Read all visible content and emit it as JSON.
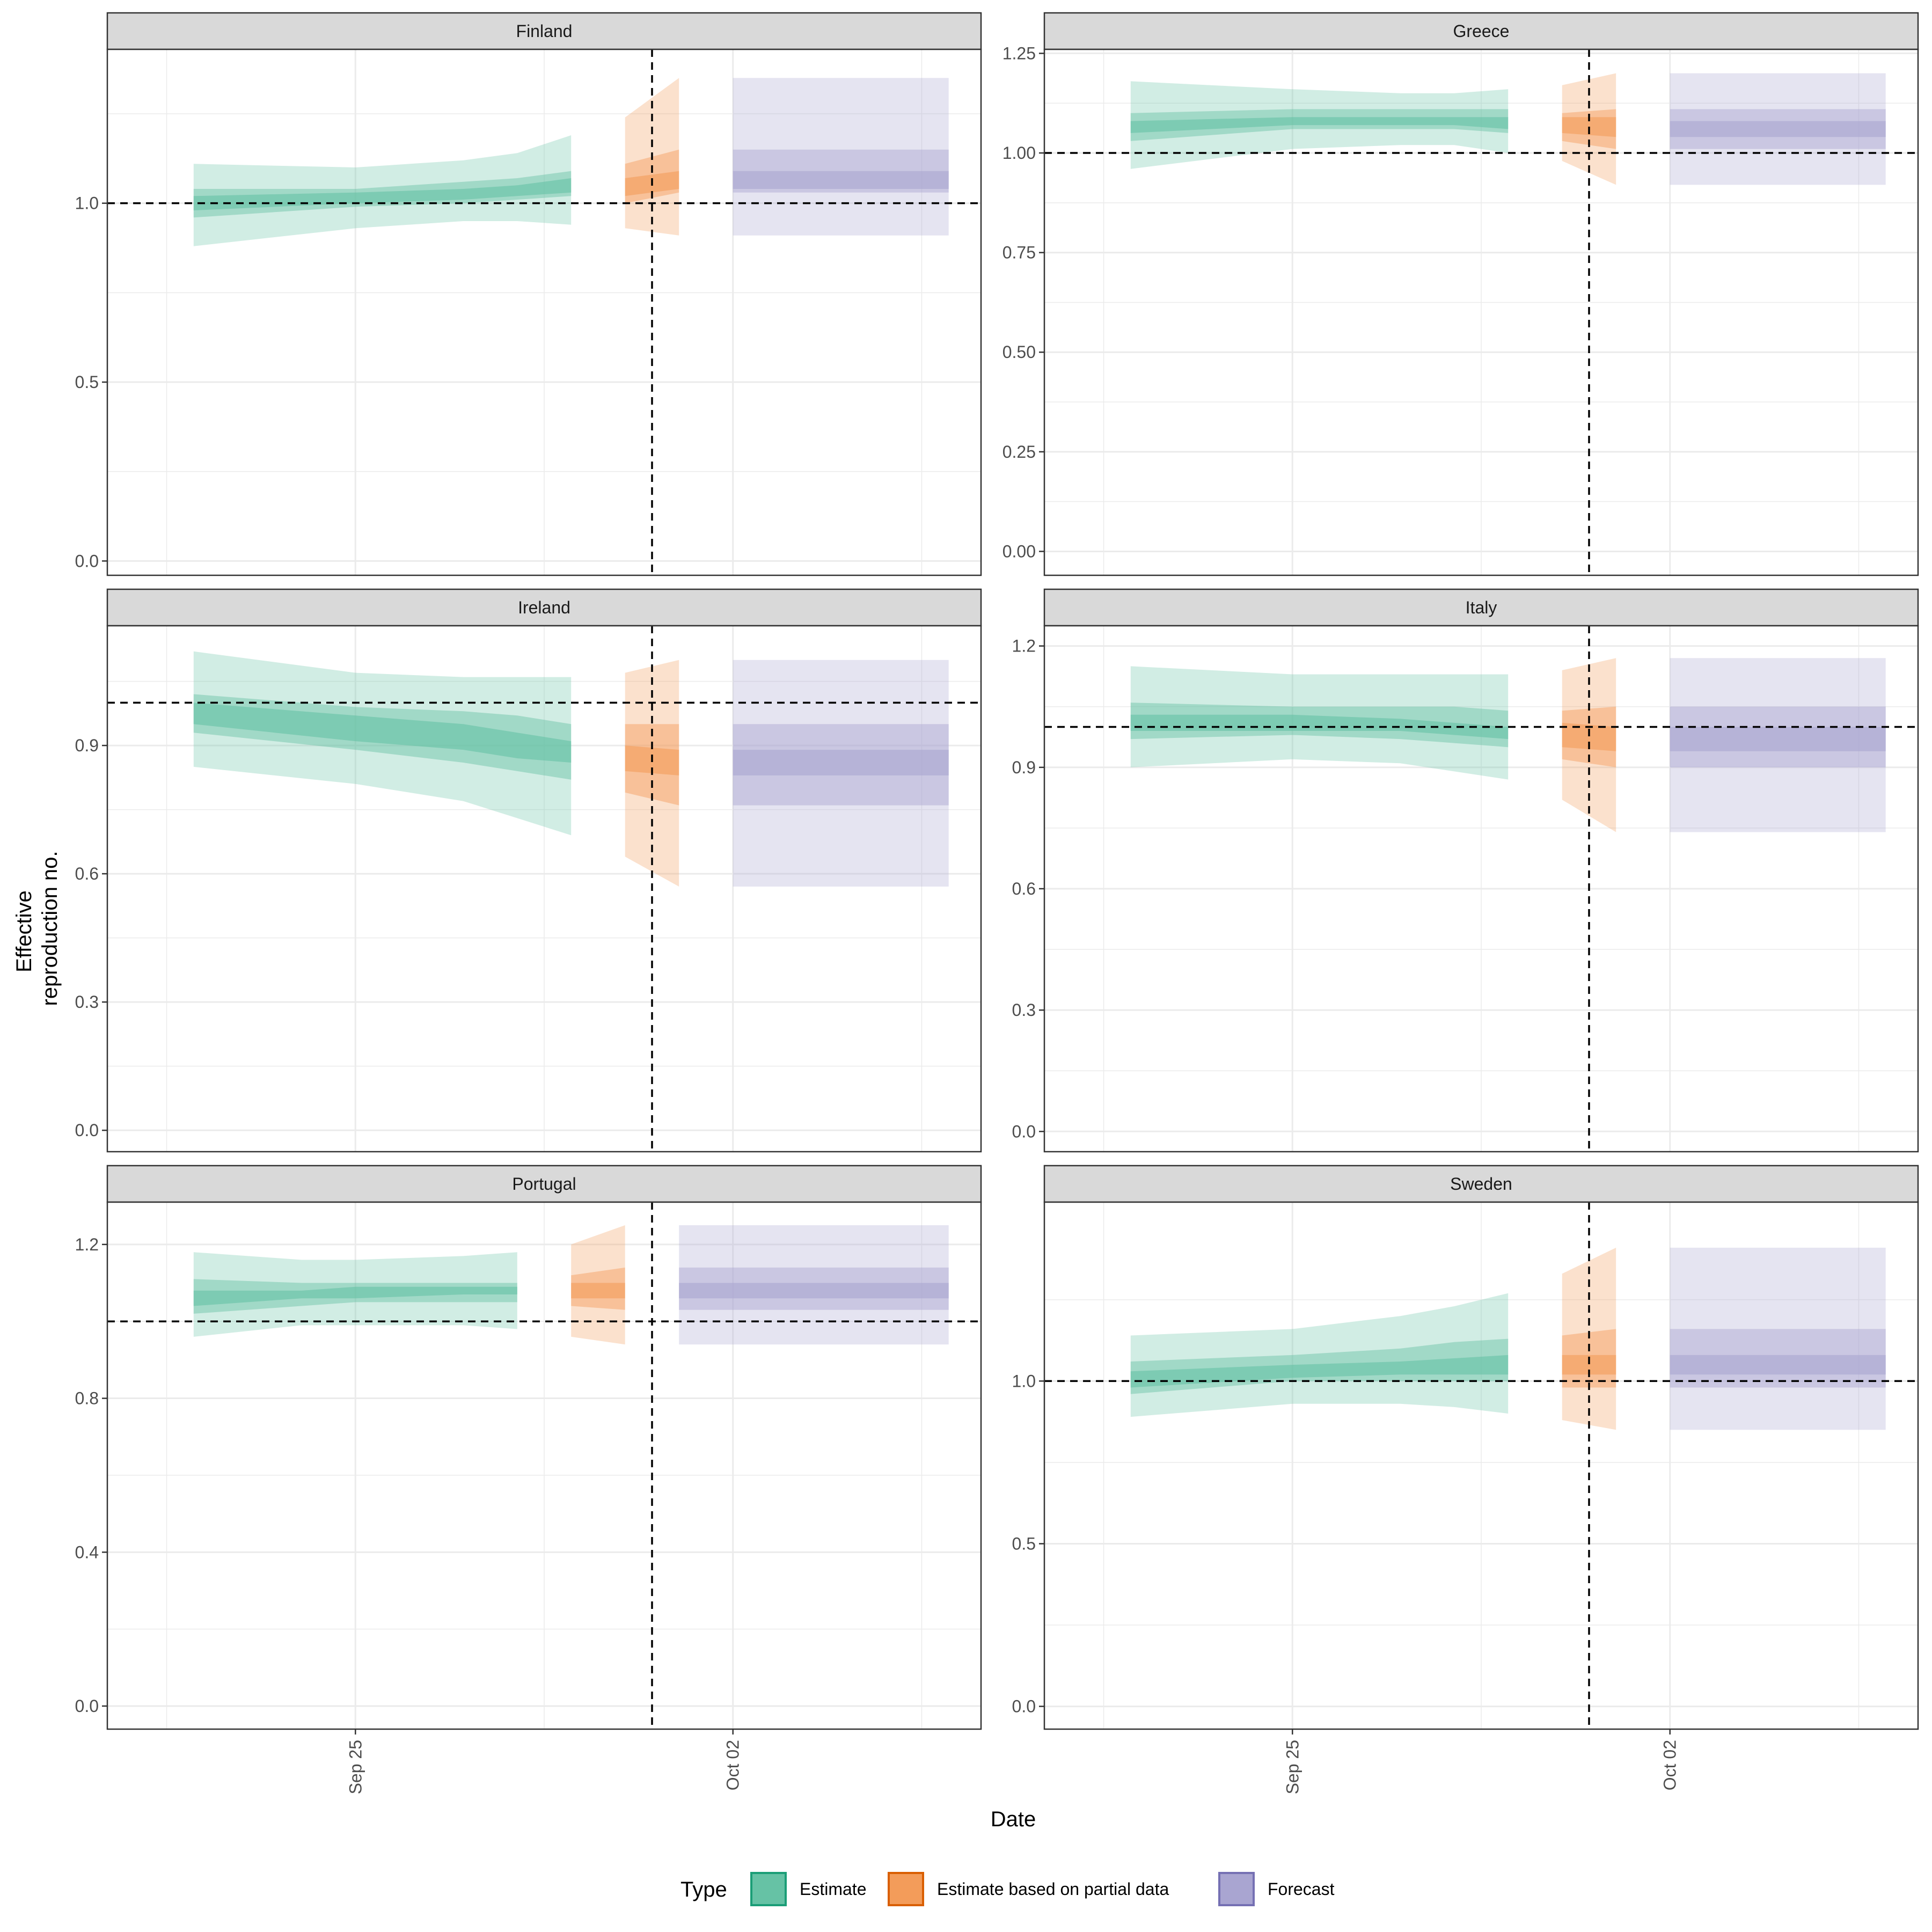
{
  "chart_data": {
    "type": "area",
    "facet_layout": "3 rows x 2 columns",
    "xlabel": "Date",
    "ylabel_lines": [
      "Effective",
      "reproduction no."
    ],
    "x_ticks": [
      {
        "label": "Sep 25",
        "date": "2020-09-25"
      },
      {
        "label": "Oct 02",
        "date": "2020-10-02"
      }
    ],
    "x_range": [
      "2020-09-21",
      "2020-10-06"
    ],
    "forecast_cutoff_date": "2020-10-01",
    "reference_y": 1.0,
    "legend": {
      "position": "bottom",
      "title": "Type",
      "entries": [
        {
          "name": "Estimate",
          "fill": "#66c2a5",
          "stroke": "#1b9e77"
        },
        {
          "name": "Estimate based on partial data",
          "fill": "#f39c5a",
          "stroke": "#d95f02"
        },
        {
          "name": "Forecast",
          "fill": "#a9a5d1",
          "stroke": "#7570b3"
        }
      ]
    },
    "colors": {
      "Estimate": "#66c2a5",
      "Estimate based on partial data": "#f39c5a",
      "Forecast": "#a9a5d1"
    },
    "panels": [
      {
        "name": "Finland",
        "ylim": [
          -0.04,
          1.43
        ],
        "yticks": [
          0.0,
          0.5,
          1.0
        ],
        "tick_labels": [
          "0.0",
          "0.5",
          "1.0"
        ],
        "series": [
          {
            "type": "Estimate",
            "dates": [
              "2020-09-22",
              "2020-09-25",
              "2020-09-27",
              "2020-09-28",
              "2020-09-29"
            ],
            "outer_lo": [
              0.88,
              0.93,
              0.95,
              0.95,
              0.94
            ],
            "outer_hi": [
              1.11,
              1.1,
              1.12,
              1.14,
              1.19
            ],
            "mid_lo": [
              0.96,
              0.99,
              1.0,
              1.01,
              1.02
            ],
            "mid_hi": [
              1.04,
              1.04,
              1.06,
              1.07,
              1.09
            ],
            "inner_lo": [
              0.98,
              1.0,
              1.01,
              1.02,
              1.03
            ],
            "inner_hi": [
              1.02,
              1.03,
              1.04,
              1.05,
              1.07
            ]
          },
          {
            "type": "Estimate based on partial data",
            "dates": [
              "2020-09-30",
              "2020-10-01"
            ],
            "outer_lo": [
              0.93,
              0.91
            ],
            "outer_hi": [
              1.24,
              1.35
            ],
            "mid_lo": [
              1.0,
              1.03
            ],
            "mid_hi": [
              1.11,
              1.15
            ],
            "inner_lo": [
              1.02,
              1.04
            ],
            "inner_hi": [
              1.07,
              1.09
            ]
          },
          {
            "type": "Forecast",
            "dates": [
              "2020-10-02",
              "2020-10-06"
            ],
            "outer_lo": [
              0.91,
              0.91
            ],
            "outer_hi": [
              1.35,
              1.35
            ],
            "mid_lo": [
              1.03,
              1.03
            ],
            "mid_hi": [
              1.15,
              1.15
            ],
            "inner_lo": [
              1.04,
              1.04
            ],
            "inner_hi": [
              1.09,
              1.09
            ]
          }
        ]
      },
      {
        "name": "Greece",
        "ylim": [
          -0.06,
          1.26
        ],
        "yticks": [
          0.0,
          0.25,
          0.5,
          0.75,
          1.0,
          1.25
        ],
        "tick_labels": [
          "0.00",
          "0.25",
          "0.50",
          "0.75",
          "1.00",
          "1.25"
        ],
        "series": [
          {
            "type": "Estimate",
            "dates": [
              "2020-09-22",
              "2020-09-25",
              "2020-09-27",
              "2020-09-28",
              "2020-09-29"
            ],
            "outer_lo": [
              0.96,
              1.01,
              1.02,
              1.02,
              1.0
            ],
            "outer_hi": [
              1.18,
              1.16,
              1.15,
              1.15,
              1.16
            ],
            "mid_lo": [
              1.03,
              1.06,
              1.06,
              1.06,
              1.05
            ],
            "mid_hi": [
              1.1,
              1.11,
              1.11,
              1.11,
              1.11
            ],
            "inner_lo": [
              1.05,
              1.07,
              1.07,
              1.07,
              1.06
            ],
            "inner_hi": [
              1.08,
              1.09,
              1.09,
              1.09,
              1.09
            ]
          },
          {
            "type": "Estimate based on partial data",
            "dates": [
              "2020-09-30",
              "2020-10-01"
            ],
            "outer_lo": [
              0.98,
              0.92
            ],
            "outer_hi": [
              1.17,
              1.2
            ],
            "mid_lo": [
              1.03,
              1.01
            ],
            "mid_hi": [
              1.1,
              1.11
            ],
            "inner_lo": [
              1.05,
              1.04
            ],
            "inner_hi": [
              1.09,
              1.09
            ]
          },
          {
            "type": "Forecast",
            "dates": [
              "2020-10-02",
              "2020-10-06"
            ],
            "outer_lo": [
              0.92,
              0.92
            ],
            "outer_hi": [
              1.2,
              1.2
            ],
            "mid_lo": [
              1.01,
              1.01
            ],
            "mid_hi": [
              1.11,
              1.11
            ],
            "inner_lo": [
              1.04,
              1.04
            ],
            "inner_hi": [
              1.08,
              1.08
            ]
          }
        ]
      },
      {
        "name": "Ireland",
        "ylim": [
          -0.05,
          1.18
        ],
        "yticks": [
          0.0,
          0.3,
          0.6,
          0.9
        ],
        "tick_labels": [
          "0.0",
          "0.3",
          "0.6",
          "0.9"
        ],
        "series": [
          {
            "type": "Estimate",
            "dates": [
              "2020-09-22",
              "2020-09-25",
              "2020-09-27",
              "2020-09-28",
              "2020-09-29"
            ],
            "outer_lo": [
              0.85,
              0.81,
              0.77,
              0.73,
              0.69
            ],
            "outer_hi": [
              1.12,
              1.07,
              1.06,
              1.06,
              1.06
            ],
            "mid_lo": [
              0.93,
              0.89,
              0.86,
              0.84,
              0.82
            ],
            "mid_hi": [
              1.02,
              0.99,
              0.98,
              0.97,
              0.95
            ],
            "inner_lo": [
              0.95,
              0.91,
              0.89,
              0.87,
              0.86
            ],
            "inner_hi": [
              1.0,
              0.97,
              0.95,
              0.93,
              0.91
            ]
          },
          {
            "type": "Estimate based on partial data",
            "dates": [
              "2020-09-30",
              "2020-10-01"
            ],
            "outer_lo": [
              0.64,
              0.57
            ],
            "outer_hi": [
              1.07,
              1.1
            ],
            "mid_lo": [
              0.79,
              0.76
            ],
            "mid_hi": [
              0.95,
              0.95
            ],
            "inner_lo": [
              0.84,
              0.83
            ],
            "inner_hi": [
              0.9,
              0.89
            ]
          },
          {
            "type": "Forecast",
            "dates": [
              "2020-10-02",
              "2020-10-06"
            ],
            "outer_lo": [
              0.57,
              0.57
            ],
            "outer_hi": [
              1.1,
              1.1
            ],
            "mid_lo": [
              0.76,
              0.76
            ],
            "mid_hi": [
              0.95,
              0.95
            ],
            "inner_lo": [
              0.83,
              0.83
            ],
            "inner_hi": [
              0.89,
              0.89
            ]
          }
        ]
      },
      {
        "name": "Italy",
        "ylim": [
          -0.05,
          1.25
        ],
        "yticks": [
          0.0,
          0.3,
          0.6,
          0.9,
          1.2
        ],
        "tick_labels": [
          "0.0",
          "0.3",
          "0.6",
          "0.9",
          "1.2"
        ],
        "series": [
          {
            "type": "Estimate",
            "dates": [
              "2020-09-22",
              "2020-09-25",
              "2020-09-27",
              "2020-09-28",
              "2020-09-29"
            ],
            "outer_lo": [
              0.9,
              0.92,
              0.91,
              0.89,
              0.87
            ],
            "outer_hi": [
              1.15,
              1.13,
              1.13,
              1.13,
              1.13
            ],
            "mid_lo": [
              0.97,
              0.98,
              0.97,
              0.96,
              0.95
            ],
            "mid_hi": [
              1.06,
              1.05,
              1.05,
              1.05,
              1.04
            ],
            "inner_lo": [
              0.99,
              0.99,
              0.99,
              0.98,
              0.97
            ],
            "inner_hi": [
              1.03,
              1.03,
              1.02,
              1.01,
              1.0
            ]
          },
          {
            "type": "Estimate based on partial data",
            "dates": [
              "2020-09-30",
              "2020-10-01"
            ],
            "outer_lo": [
              0.82,
              0.74
            ],
            "outer_hi": [
              1.14,
              1.17
            ],
            "mid_lo": [
              0.92,
              0.9
            ],
            "mid_hi": [
              1.04,
              1.05
            ],
            "inner_lo": [
              0.95,
              0.94
            ],
            "inner_hi": [
              1.01,
              1.0
            ]
          },
          {
            "type": "Forecast",
            "dates": [
              "2020-10-02",
              "2020-10-06"
            ],
            "outer_lo": [
              0.74,
              0.74
            ],
            "outer_hi": [
              1.17,
              1.17
            ],
            "mid_lo": [
              0.9,
              0.9
            ],
            "mid_hi": [
              1.05,
              1.05
            ],
            "inner_lo": [
              0.94,
              0.94
            ],
            "inner_hi": [
              1.0,
              1.0
            ]
          }
        ]
      },
      {
        "name": "Portugal",
        "ylim": [
          -0.06,
          1.31
        ],
        "yticks": [
          0.0,
          0.4,
          0.8,
          1.2
        ],
        "tick_labels": [
          "0.0",
          "0.4",
          "0.8",
          "1.2"
        ],
        "series": [
          {
            "type": "Estimate",
            "dates": [
              "2020-09-22",
              "2020-09-24",
              "2020-09-25",
              "2020-09-27",
              "2020-09-28"
            ],
            "outer_lo": [
              0.96,
              0.99,
              0.99,
              0.99,
              0.98
            ],
            "outer_hi": [
              1.18,
              1.16,
              1.16,
              1.17,
              1.18
            ],
            "mid_lo": [
              1.02,
              1.04,
              1.05,
              1.05,
              1.05
            ],
            "mid_hi": [
              1.11,
              1.1,
              1.1,
              1.1,
              1.1
            ],
            "inner_lo": [
              1.04,
              1.06,
              1.06,
              1.07,
              1.07
            ],
            "inner_hi": [
              1.08,
              1.08,
              1.09,
              1.09,
              1.09
            ]
          },
          {
            "type": "Estimate based on partial data",
            "dates": [
              "2020-09-29",
              "2020-09-30"
            ],
            "outer_lo": [
              0.96,
              0.94
            ],
            "outer_hi": [
              1.2,
              1.25
            ],
            "mid_lo": [
              1.04,
              1.03
            ],
            "mid_hi": [
              1.12,
              1.14
            ],
            "inner_lo": [
              1.06,
              1.06
            ],
            "inner_hi": [
              1.1,
              1.1
            ]
          },
          {
            "type": "Forecast",
            "dates": [
              "2020-10-01",
              "2020-10-06"
            ],
            "outer_lo": [
              0.94,
              0.94
            ],
            "outer_hi": [
              1.25,
              1.25
            ],
            "mid_lo": [
              1.03,
              1.03
            ],
            "mid_hi": [
              1.14,
              1.14
            ],
            "inner_lo": [
              1.06,
              1.06
            ],
            "inner_hi": [
              1.1,
              1.1
            ]
          }
        ]
      },
      {
        "name": "Sweden",
        "ylim": [
          -0.07,
          1.55
        ],
        "yticks": [
          0.0,
          0.5,
          1.0
        ],
        "tick_labels": [
          "0.0",
          "0.5",
          "1.0"
        ],
        "series": [
          {
            "type": "Estimate",
            "dates": [
              "2020-09-22",
              "2020-09-25",
              "2020-09-27",
              "2020-09-28",
              "2020-09-29"
            ],
            "outer_lo": [
              0.89,
              0.93,
              0.93,
              0.92,
              0.9
            ],
            "outer_hi": [
              1.14,
              1.16,
              1.2,
              1.23,
              1.27
            ],
            "mid_lo": [
              0.96,
              1.0,
              1.0,
              1.0,
              1.0
            ],
            "mid_hi": [
              1.06,
              1.08,
              1.1,
              1.12,
              1.13
            ],
            "inner_lo": [
              0.98,
              1.01,
              1.02,
              1.02,
              1.02
            ],
            "inner_hi": [
              1.03,
              1.05,
              1.06,
              1.07,
              1.08
            ]
          },
          {
            "type": "Estimate based on partial data",
            "dates": [
              "2020-09-30",
              "2020-10-01"
            ],
            "outer_lo": [
              0.88,
              0.85
            ],
            "outer_hi": [
              1.33,
              1.41
            ],
            "mid_lo": [
              0.98,
              0.98
            ],
            "mid_hi": [
              1.14,
              1.16
            ],
            "inner_lo": [
              1.02,
              1.02
            ],
            "inner_hi": [
              1.08,
              1.08
            ]
          },
          {
            "type": "Forecast",
            "dates": [
              "2020-10-02",
              "2020-10-06"
            ],
            "outer_lo": [
              0.85,
              0.85
            ],
            "outer_hi": [
              1.41,
              1.41
            ],
            "mid_lo": [
              0.98,
              0.98
            ],
            "mid_hi": [
              1.16,
              1.16
            ],
            "inner_lo": [
              1.02,
              1.02
            ],
            "inner_hi": [
              1.08,
              1.08
            ]
          }
        ]
      }
    ]
  }
}
